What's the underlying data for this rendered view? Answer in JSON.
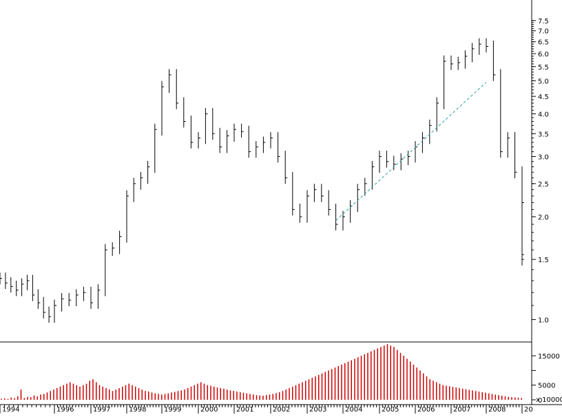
{
  "chart_data": [
    {
      "type": "line",
      "title": "",
      "xlabel": "",
      "ylabel": "",
      "scale": "log",
      "ylim": [
        0.86,
        8.3
      ],
      "x_ticks": [
        "1994",
        "1996",
        "1997",
        "1998",
        "1999",
        "2000",
        "2001",
        "2002",
        "2003",
        "2004",
        "2005",
        "2006",
        "2007",
        "2008",
        "20"
      ],
      "y_ticks": [
        1.0,
        1.5,
        2.0,
        2.5,
        3.0,
        3.5,
        4.0,
        4.5,
        5.0,
        5.5,
        6.0,
        6.5,
        7.0,
        7.5
      ],
      "y_tick_labels": [
        "1.0",
        "1.5",
        "2.0",
        "2.5",
        "3.0",
        "3.5",
        "4.0",
        "4.5",
        "5.0",
        "5.5",
        "6.0",
        "6.5",
        "7.0",
        "7.5"
      ],
      "series": [
        {
          "style": "price-range-bars",
          "color": "#000000",
          "points": [
            [
              1994.0,
              1.32
            ],
            [
              1994.2,
              1.28
            ],
            [
              1994.4,
              1.25
            ],
            [
              1994.6,
              1.22
            ],
            [
              1994.8,
              1.27
            ],
            [
              1995.0,
              1.3
            ],
            [
              1995.2,
              1.18
            ],
            [
              1995.4,
              1.12
            ],
            [
              1995.6,
              1.05
            ],
            [
              1995.8,
              1.02
            ],
            [
              1996.0,
              1.1
            ],
            [
              1996.2,
              1.15
            ],
            [
              1996.4,
              1.14
            ],
            [
              1996.6,
              1.18
            ],
            [
              1996.8,
              1.2
            ],
            [
              1997.0,
              1.12
            ],
            [
              1997.2,
              1.22
            ],
            [
              1997.4,
              1.6
            ],
            [
              1997.6,
              1.62
            ],
            [
              1997.8,
              1.75
            ],
            [
              1998.0,
              2.3
            ],
            [
              1998.2,
              2.5
            ],
            [
              1998.4,
              2.6
            ],
            [
              1998.6,
              2.8
            ],
            [
              1998.8,
              3.6
            ],
            [
              1999.0,
              4.8
            ],
            [
              1999.2,
              5.2
            ],
            [
              1999.4,
              4.3
            ],
            [
              1999.6,
              3.8
            ],
            [
              1999.8,
              3.3
            ],
            [
              2000.0,
              3.4
            ],
            [
              2000.2,
              4.0
            ],
            [
              2000.4,
              3.5
            ],
            [
              2000.6,
              3.2
            ],
            [
              2000.8,
              3.45
            ],
            [
              2001.0,
              3.6
            ],
            [
              2001.2,
              3.55
            ],
            [
              2001.4,
              3.1
            ],
            [
              2001.6,
              3.2
            ],
            [
              2001.8,
              3.3
            ],
            [
              2002.0,
              3.4
            ],
            [
              2002.2,
              3.0
            ],
            [
              2002.4,
              2.6
            ],
            [
              2002.6,
              2.1
            ],
            [
              2002.8,
              2.0
            ],
            [
              2003.0,
              2.3
            ],
            [
              2003.2,
              2.4
            ],
            [
              2003.4,
              2.3
            ],
            [
              2003.6,
              2.1
            ],
            [
              2003.8,
              1.9
            ],
            [
              2004.0,
              2.0
            ],
            [
              2004.2,
              2.15
            ],
            [
              2004.4,
              2.4
            ],
            [
              2004.6,
              2.5
            ],
            [
              2004.8,
              2.8
            ],
            [
              2005.0,
              3.0
            ],
            [
              2005.2,
              2.9
            ],
            [
              2005.4,
              2.85
            ],
            [
              2005.6,
              2.95
            ],
            [
              2005.8,
              3.0
            ],
            [
              2006.0,
              3.2
            ],
            [
              2006.2,
              3.4
            ],
            [
              2006.4,
              3.7
            ],
            [
              2006.6,
              4.3
            ],
            [
              2006.8,
              5.7
            ],
            [
              2007.0,
              5.6
            ],
            [
              2007.2,
              5.65
            ],
            [
              2007.4,
              5.9
            ],
            [
              2007.6,
              6.2
            ],
            [
              2007.8,
              6.4
            ],
            [
              2008.0,
              6.3
            ],
            [
              2008.2,
              5.2
            ],
            [
              2008.4,
              3.1
            ],
            [
              2008.6,
              3.4
            ],
            [
              2008.8,
              2.7
            ],
            [
              2009.0,
              2.2
            ],
            [
              2009.2,
              1.55
            ],
            [
              2009.4,
              1.5
            ]
          ]
        },
        {
          "style": "trendline",
          "color": "#2aa39a",
          "points": [
            [
              2003.8,
              1.95
            ],
            [
              2008.0,
              4.95
            ]
          ]
        }
      ]
    },
    {
      "type": "bar",
      "title": "",
      "xlabel": "",
      "ylabel": "",
      "ylim": [
        0,
        19000
      ],
      "y_ticks": [
        0,
        5000,
        10000,
        15000
      ],
      "y_tick_labels": [
        "0",
        "5000",
        "10000",
        "15000"
      ],
      "multiplier_label": "x 10000",
      "x_ticks": [
        "1994",
        "1996",
        "1997",
        "1998",
        "1999",
        "2000",
        "2001",
        "2002",
        "2003",
        "2004",
        "2005",
        "2006",
        "2007",
        "2008",
        "20"
      ],
      "series": [
        {
          "color": "#cc0000",
          "values": [
            400,
            500,
            300,
            800,
            600,
            1200,
            3500,
            600,
            1000,
            900,
            1500,
            1200,
            1800,
            2000,
            2500,
            3000,
            3500,
            4000,
            4500,
            5000,
            5500,
            6000,
            5500,
            5000,
            4500,
            5000,
            5500,
            6500,
            7000,
            6000,
            5000,
            4500,
            4000,
            3500,
            3000,
            3500,
            4000,
            4500,
            5000,
            5500,
            5000,
            4500,
            4000,
            3500,
            3000,
            2800,
            2500,
            2200,
            2000,
            1800,
            2000,
            2200,
            2500,
            2700,
            3000,
            3200,
            3500,
            4000,
            4500,
            5000,
            5500,
            6000,
            5500,
            5000,
            4800,
            4500,
            4200,
            4000,
            3800,
            3500,
            3200,
            3000,
            2800,
            2600,
            2400,
            2200,
            2000,
            1800,
            1600,
            1500,
            1400,
            1600,
            1800,
            2000,
            2300,
            2600,
            3000,
            3500,
            4000,
            4500,
            5000,
            5500,
            6000,
            6500,
            7000,
            7500,
            8000,
            8500,
            9000,
            9500,
            10000,
            10500,
            11000,
            11500,
            12000,
            12500,
            13000,
            13500,
            14000,
            14500,
            15000,
            15500,
            16000,
            16500,
            17000,
            17500,
            18000,
            18500,
            19000,
            18500,
            18000,
            17000,
            16000,
            15000,
            14000,
            13000,
            12000,
            11000,
            10000,
            9000,
            8000,
            7000,
            6500,
            6000,
            5500,
            5000,
            4800,
            4600,
            4400,
            4200,
            4000,
            3800,
            3600,
            3400,
            3200,
            3000,
            2800,
            2600,
            2400,
            2200,
            2000,
            1800,
            1600,
            1400,
            1200,
            1000,
            900,
            800,
            700,
            600
          ]
        }
      ]
    }
  ]
}
